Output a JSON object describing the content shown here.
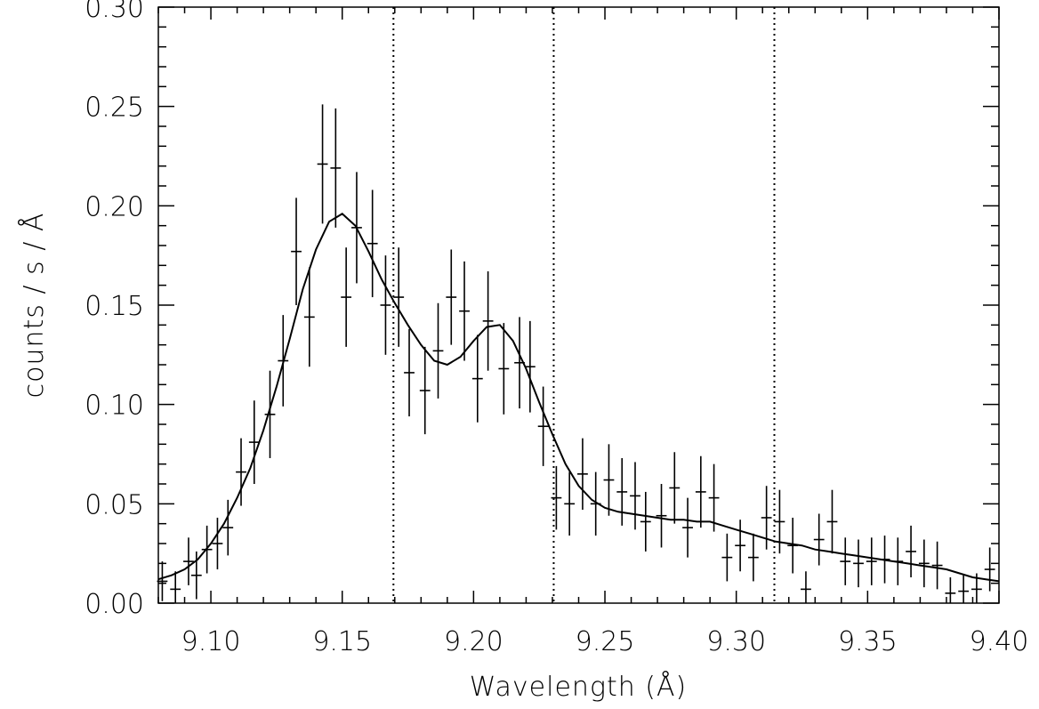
{
  "chart_data": {
    "type": "scatter",
    "xlabel": "Wavelength (Å)",
    "ylabel": "counts / s / Å",
    "xlim": [
      9.08,
      9.4
    ],
    "ylim": [
      0.0,
      0.3
    ],
    "xticks": [
      "9.10",
      "9.15",
      "9.20",
      "9.25",
      "9.30",
      "9.35",
      "9.40"
    ],
    "yticks": [
      "0.00",
      "0.05",
      "0.10",
      "0.15",
      "0.20",
      "0.25",
      "0.30"
    ],
    "grid": false,
    "vertical_reference_lines": [
      9.1695,
      9.2305,
      9.3145
    ],
    "series": [
      {
        "kind": "data_with_error_bars",
        "x": [
          9.0815,
          9.0865,
          9.0915,
          9.0945,
          9.0985,
          9.1025,
          9.1065,
          9.1115,
          9.1165,
          9.1225,
          9.1275,
          9.1325,
          9.1375,
          9.1425,
          9.1475,
          9.1515,
          9.1555,
          9.1615,
          9.1665,
          9.1715,
          9.1755,
          9.1815,
          9.1865,
          9.1915,
          9.1965,
          9.2015,
          9.2055,
          9.2115,
          9.2175,
          9.2215,
          9.2265,
          9.2315,
          9.2365,
          9.2415,
          9.2465,
          9.2515,
          9.2565,
          9.2615,
          9.2655,
          9.2715,
          9.2765,
          9.2815,
          9.2865,
          9.2915,
          9.2965,
          9.3015,
          9.3065,
          9.3115,
          9.3165,
          9.3215,
          9.3265,
          9.3315,
          9.3365,
          9.3415,
          9.3465,
          9.3515,
          9.3565,
          9.3615,
          9.3665,
          9.3715,
          9.3765,
          9.3815,
          9.3865,
          9.3915,
          9.3965
        ],
        "y": [
          0.011,
          0.007,
          0.021,
          0.014,
          0.027,
          0.03,
          0.038,
          0.066,
          0.081,
          0.095,
          0.122,
          0.177,
          0.144,
          0.221,
          0.219,
          0.154,
          0.189,
          0.181,
          0.15,
          0.154,
          0.116,
          0.107,
          0.127,
          0.154,
          0.147,
          0.113,
          0.142,
          0.118,
          0.121,
          0.119,
          0.089,
          0.053,
          0.05,
          0.065,
          0.05,
          0.062,
          0.056,
          0.054,
          0.041,
          0.044,
          0.058,
          0.038,
          0.056,
          0.053,
          0.023,
          0.029,
          0.023,
          0.043,
          0.041,
          0.029,
          0.007,
          0.032,
          0.041,
          0.021,
          0.02,
          0.021,
          0.022,
          0.021,
          0.026,
          0.02,
          0.019,
          0.005,
          0.006,
          0.007,
          0.017
        ],
        "yerr": [
          0.01,
          0.009,
          0.012,
          0.012,
          0.012,
          0.013,
          0.014,
          0.017,
          0.021,
          0.022,
          0.023,
          0.027,
          0.025,
          0.03,
          0.03,
          0.025,
          0.028,
          0.027,
          0.025,
          0.025,
          0.022,
          0.022,
          0.024,
          0.024,
          0.025,
          0.022,
          0.025,
          0.023,
          0.023,
          0.023,
          0.02,
          0.016,
          0.016,
          0.018,
          0.016,
          0.018,
          0.017,
          0.017,
          0.015,
          0.016,
          0.018,
          0.015,
          0.018,
          0.017,
          0.012,
          0.013,
          0.012,
          0.016,
          0.016,
          0.014,
          0.009,
          0.013,
          0.016,
          0.012,
          0.012,
          0.012,
          0.012,
          0.012,
          0.013,
          0.012,
          0.012,
          0.008,
          0.008,
          0.008,
          0.011
        ],
        "xerr": 0.002
      },
      {
        "kind": "model_curve",
        "x": [
          9.08,
          9.085,
          9.09,
          9.095,
          9.1,
          9.105,
          9.11,
          9.115,
          9.12,
          9.125,
          9.13,
          9.135,
          9.14,
          9.145,
          9.15,
          9.155,
          9.16,
          9.165,
          9.17,
          9.175,
          9.18,
          9.185,
          9.19,
          9.195,
          9.2,
          9.205,
          9.21,
          9.215,
          9.22,
          9.225,
          9.23,
          9.235,
          9.24,
          9.245,
          9.25,
          9.255,
          9.26,
          9.265,
          9.27,
          9.275,
          9.28,
          9.285,
          9.29,
          9.295,
          9.3,
          9.305,
          9.31,
          9.315,
          9.32,
          9.325,
          9.33,
          9.335,
          9.34,
          9.345,
          9.35,
          9.355,
          9.36,
          9.365,
          9.37,
          9.375,
          9.38,
          9.385,
          9.39,
          9.395,
          9.4
        ],
        "y": [
          0.012,
          0.014,
          0.017,
          0.022,
          0.03,
          0.04,
          0.053,
          0.068,
          0.087,
          0.109,
          0.133,
          0.158,
          0.178,
          0.192,
          0.196,
          0.19,
          0.177,
          0.163,
          0.151,
          0.14,
          0.13,
          0.122,
          0.12,
          0.124,
          0.132,
          0.139,
          0.14,
          0.132,
          0.118,
          0.101,
          0.085,
          0.07,
          0.059,
          0.052,
          0.048,
          0.046,
          0.045,
          0.044,
          0.043,
          0.042,
          0.042,
          0.041,
          0.041,
          0.039,
          0.037,
          0.035,
          0.033,
          0.031,
          0.03,
          0.029,
          0.027,
          0.026,
          0.025,
          0.024,
          0.023,
          0.022,
          0.021,
          0.02,
          0.019,
          0.018,
          0.017,
          0.015,
          0.013,
          0.012,
          0.011
        ]
      }
    ]
  }
}
